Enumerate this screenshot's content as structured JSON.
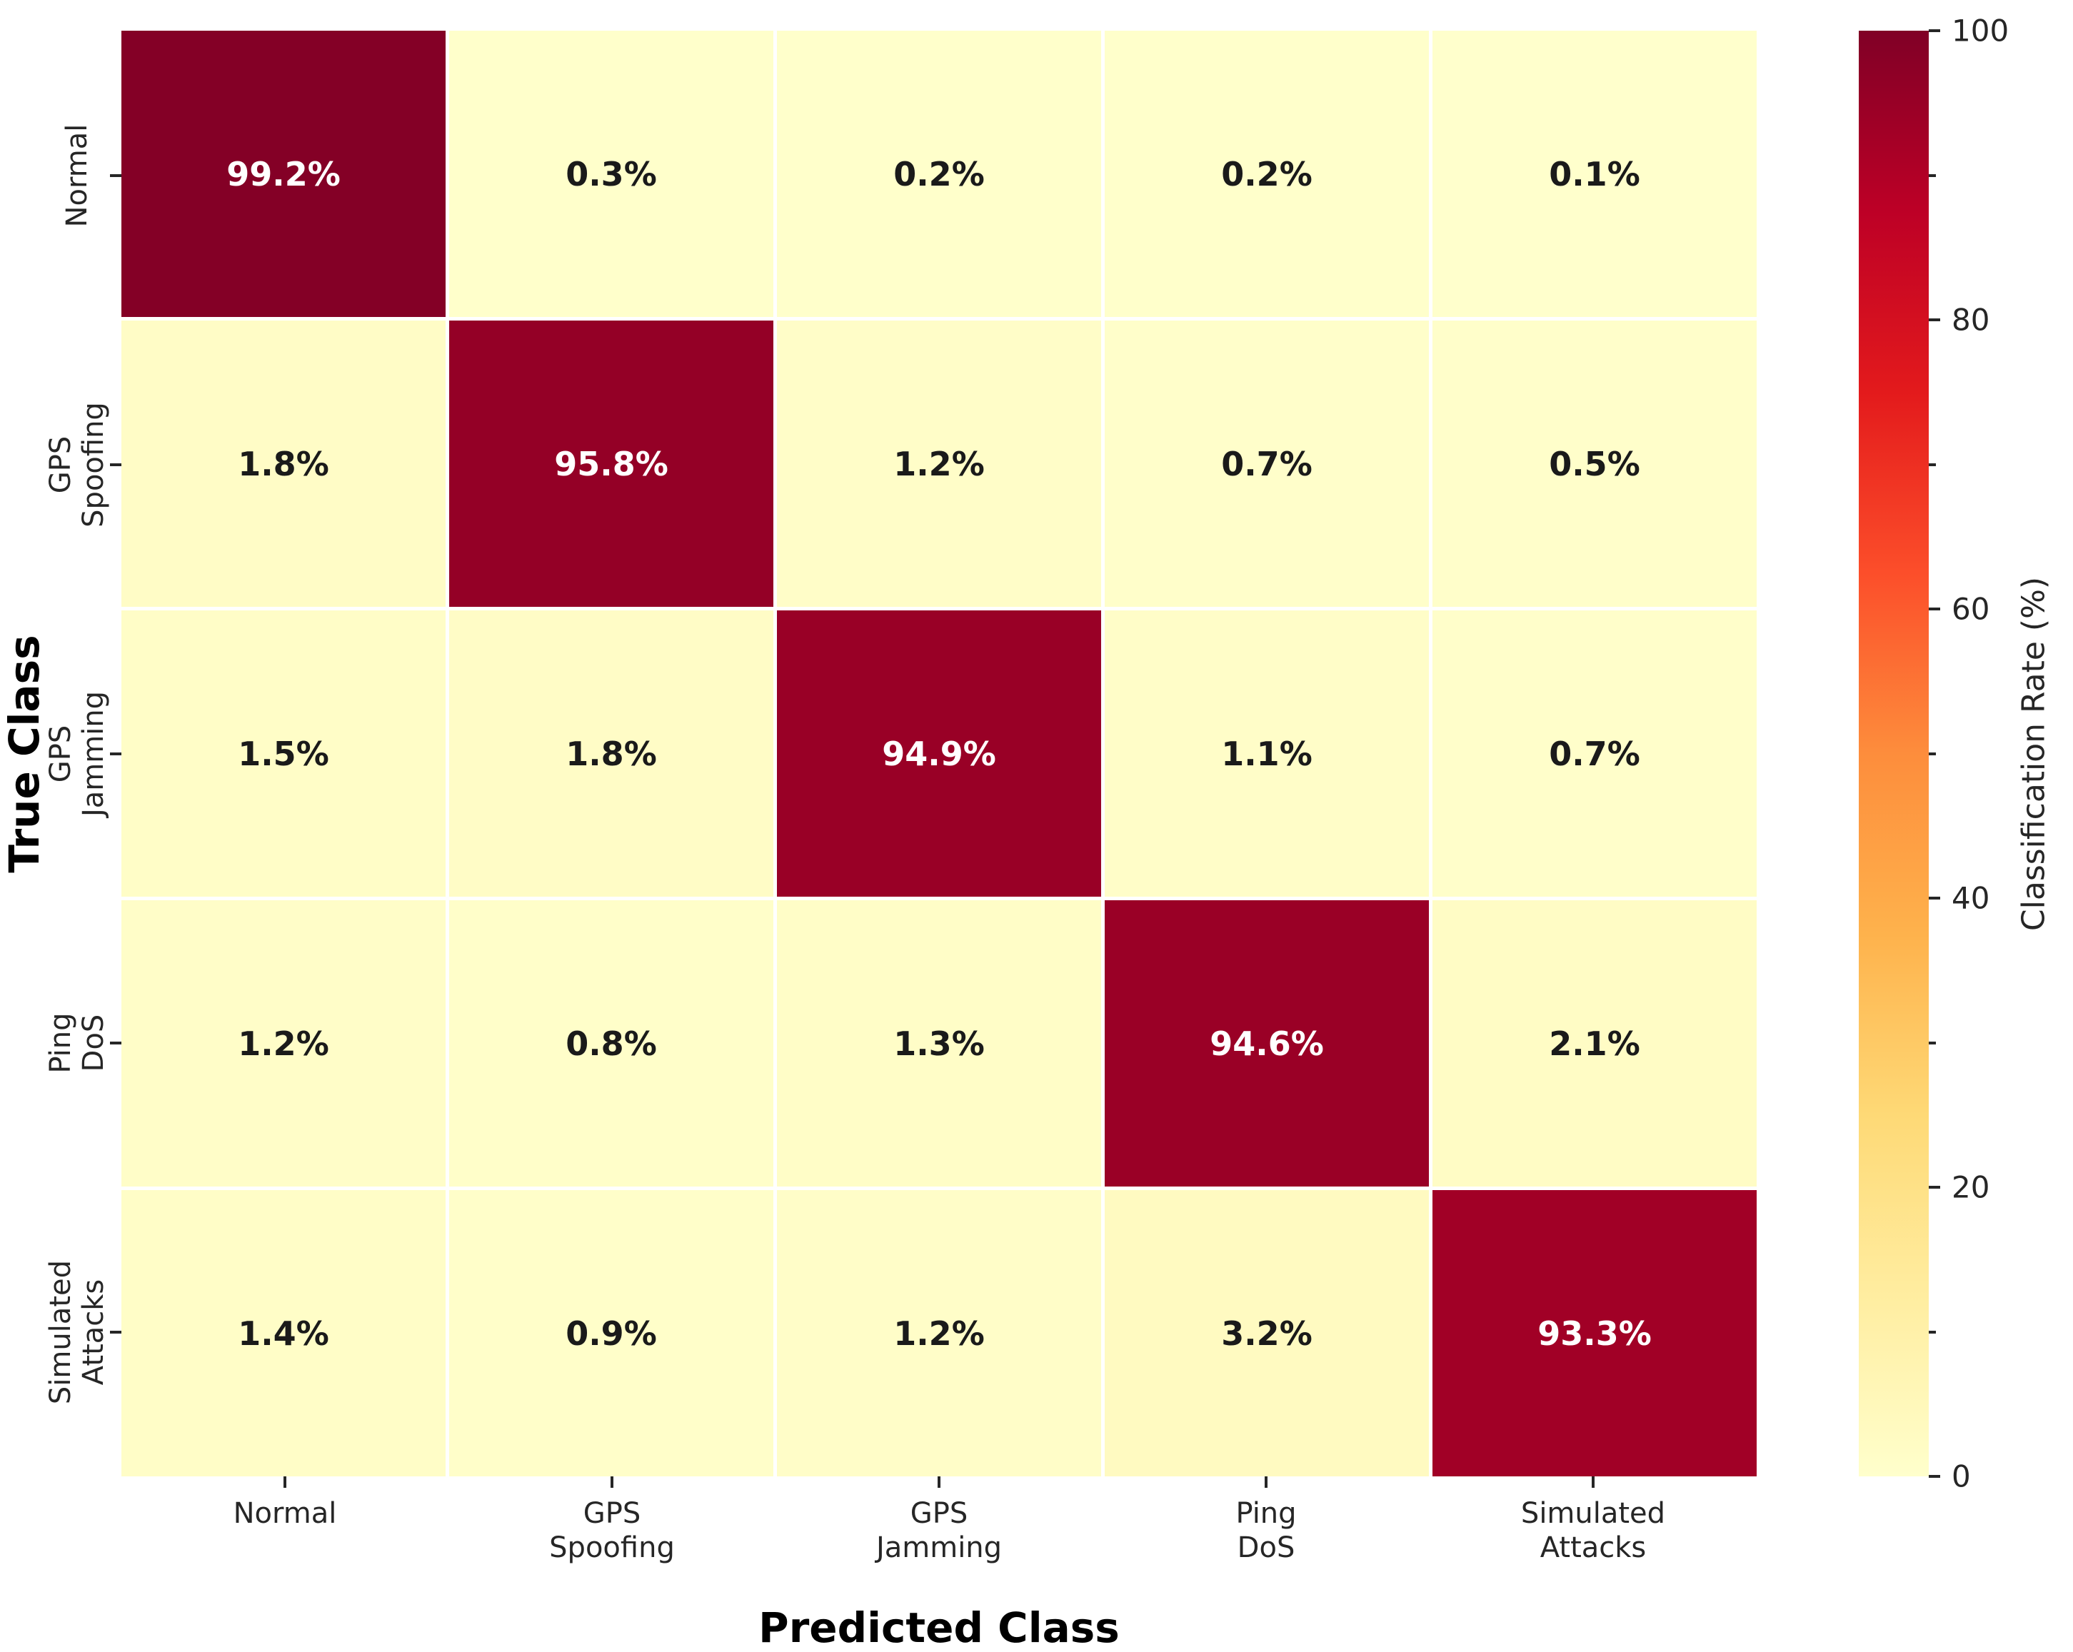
{
  "chart_data": {
    "type": "heatmap",
    "xlabel": "Predicted Class",
    "ylabel": "True Class",
    "x_tick_labels": [
      [
        "Normal"
      ],
      [
        "GPS",
        "Spoofing"
      ],
      [
        "GPS",
        "Jamming"
      ],
      [
        "Ping",
        "DoS"
      ],
      [
        "Simulated",
        "Attacks"
      ]
    ],
    "y_tick_labels": [
      [
        "Normal"
      ],
      [
        "GPS",
        "Spoofing"
      ],
      [
        "GPS",
        "Jamming"
      ],
      [
        "Ping",
        "DoS"
      ],
      [
        "Simulated",
        "Attacks"
      ]
    ],
    "categories": [
      "Normal",
      "GPS Spoofing",
      "GPS Jamming",
      "Ping DoS",
      "Simulated Attacks"
    ],
    "values": [
      [
        99.2,
        0.3,
        0.2,
        0.2,
        0.1
      ],
      [
        1.8,
        95.8,
        1.2,
        0.7,
        0.5
      ],
      [
        1.5,
        1.8,
        94.9,
        1.1,
        0.7
      ],
      [
        1.2,
        0.8,
        1.3,
        94.6,
        2.1
      ],
      [
        1.4,
        0.9,
        1.2,
        3.2,
        93.3
      ]
    ],
    "value_suffix": "%",
    "value_decimals": 1,
    "colorbar": {
      "label": "Classification Rate (%)",
      "range": [
        0,
        100
      ],
      "ticks": [
        "0",
        "20",
        "40",
        "60",
        "80",
        "100"
      ]
    },
    "colormap": {
      "name": "YlOrRd",
      "stops": [
        "#ffffcc",
        "#ffeda0",
        "#fed976",
        "#feb24c",
        "#fd8d3c",
        "#fc4e2a",
        "#e31a1c",
        "#bd0026",
        "#800026"
      ]
    },
    "colors": {
      "cell_text_dark": "#1a1a1a",
      "cell_text_light": "#ffffff",
      "tick_color": "#262626",
      "grid_line": "#ffffff"
    },
    "legend_position": "right-colorbar",
    "grid": true
  }
}
